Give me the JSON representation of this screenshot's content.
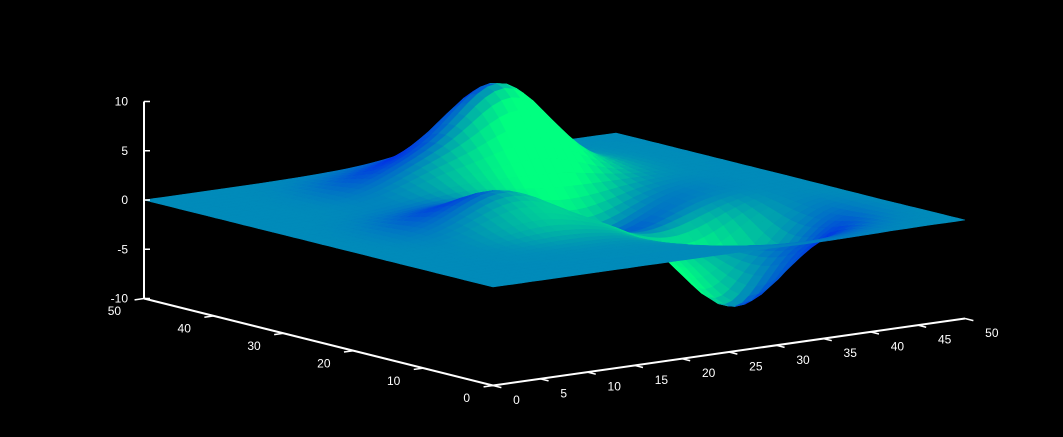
{
  "chart_data": {
    "type": "surface",
    "colormap": "winter",
    "background": "#000000",
    "axis_color": "#ffffff",
    "colors": {
      "low": "#0000ff",
      "high": "#00ff80"
    },
    "x": {
      "range": [
        0,
        50
      ],
      "ticks": [
        0,
        5,
        10,
        15,
        20,
        25,
        30,
        35,
        40,
        45,
        50
      ]
    },
    "y": {
      "range": [
        0,
        50
      ],
      "ticks": [
        0,
        10,
        20,
        30,
        40,
        50
      ]
    },
    "z": {
      "range": [
        -10,
        10
      ],
      "ticks": [
        -10,
        -5,
        0,
        5,
        10
      ]
    },
    "grid": false,
    "peaks": [
      {
        "x": 31,
        "y": 41,
        "height": 9
      },
      {
        "x": 17,
        "y": 22,
        "height": 3.5
      },
      {
        "x": 35,
        "y": 13,
        "height": -9
      },
      {
        "x": 31,
        "y": 27,
        "height": -3.5
      },
      {
        "x": 22,
        "y": 39,
        "height": 2.5
      }
    ],
    "mesh_resolution": 49
  }
}
